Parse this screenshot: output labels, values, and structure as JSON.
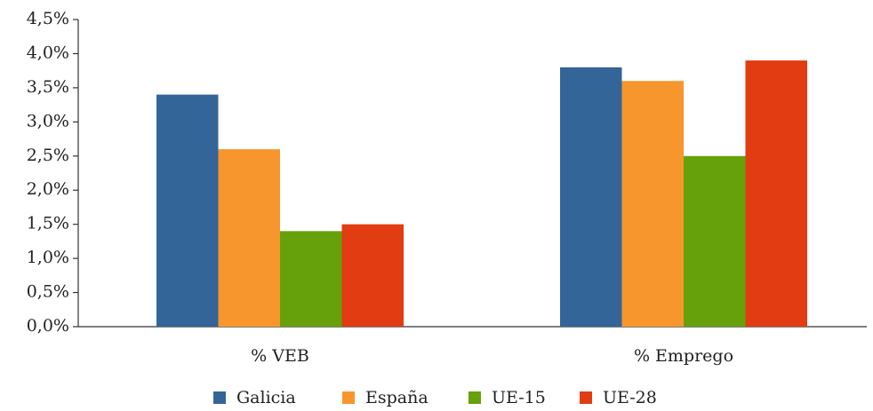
{
  "chart_data": {
    "type": "bar",
    "categories": [
      "% VEB",
      "% Emprego"
    ],
    "series": [
      {
        "name": "Galicia",
        "color": "#336598",
        "values": [
          3.4,
          3.8
        ]
      },
      {
        "name": "España",
        "color": "#f7962c",
        "values": [
          2.6,
          3.6
        ]
      },
      {
        "name": "UE-15",
        "color": "#66a10b",
        "values": [
          1.4,
          2.5
        ]
      },
      {
        "name": "UE-28",
        "color": "#e23c12",
        "values": [
          1.5,
          3.9
        ]
      }
    ],
    "ylim": [
      0,
      4.5
    ],
    "yticks": [
      {
        "value": 0,
        "label": "0,0%"
      },
      {
        "value": 0.5,
        "label": "0,5%"
      },
      {
        "value": 1,
        "label": "1,0%"
      },
      {
        "value": 1.5,
        "label": "1,5%"
      },
      {
        "value": 2,
        "label": "2,0%"
      },
      {
        "value": 2.5,
        "label": "2,5%"
      },
      {
        "value": 3,
        "label": "3,0%"
      },
      {
        "value": 3.5,
        "label": "3,5%"
      },
      {
        "value": 4,
        "label": "4,0%"
      },
      {
        "value": 4.5,
        "label": "4,5%"
      }
    ],
    "grid": false,
    "legend": "bottom"
  }
}
